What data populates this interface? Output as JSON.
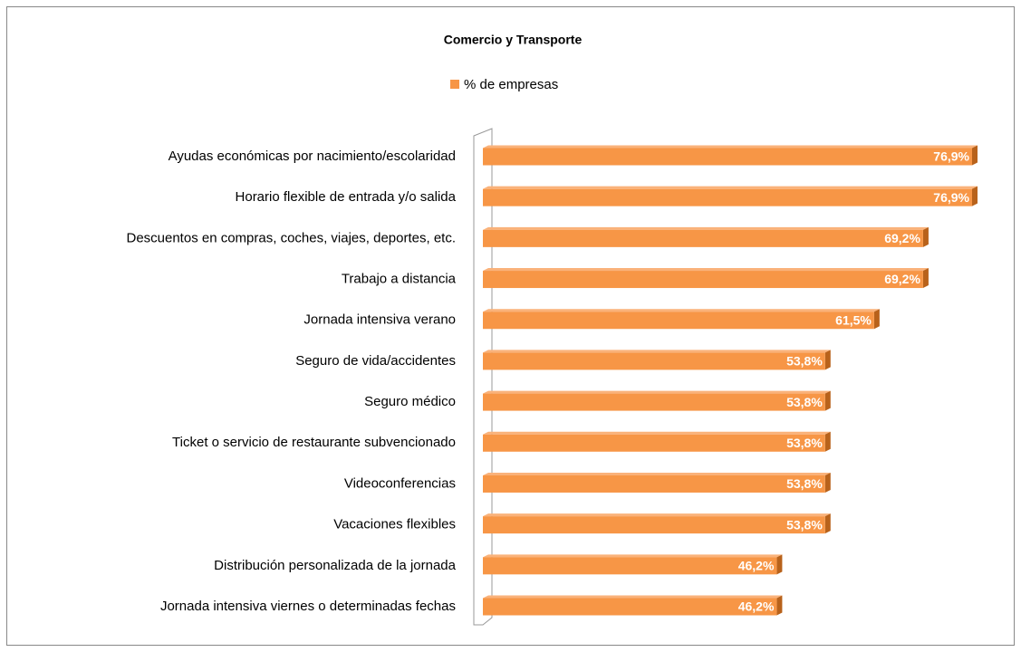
{
  "chart_data": {
    "type": "bar",
    "orientation": "horizontal",
    "title": "Comercio y Transporte",
    "categories": [
      "Ayudas económicas por nacimiento/escolaridad",
      "Horario flexible de entrada y/o salida",
      "Descuentos en compras, coches, viajes, deportes, etc.",
      "Trabajo a distancia",
      "Jornada intensiva verano",
      "Seguro de vida/accidentes",
      "Seguro médico",
      "Ticket o servicio de restaurante subvencionado",
      "Videoconferencias",
      "Vacaciones flexibles",
      "Distribución personalizada de la jornada",
      "Jornada intensiva viernes o determinadas fechas"
    ],
    "series": [
      {
        "name": "% de empresas",
        "color": "#f79646",
        "values": [
          76.9,
          76.9,
          69.2,
          69.2,
          61.5,
          53.8,
          53.8,
          53.8,
          53.8,
          53.8,
          46.2,
          46.2
        ],
        "value_labels": [
          "76,9%",
          "76,9%",
          "69,2%",
          "69,2%",
          "61,5%",
          "53,8%",
          "53,8%",
          "53,8%",
          "53,8%",
          "53,8%",
          "46,2%",
          "46,2%"
        ]
      }
    ],
    "legend": "top"
  }
}
